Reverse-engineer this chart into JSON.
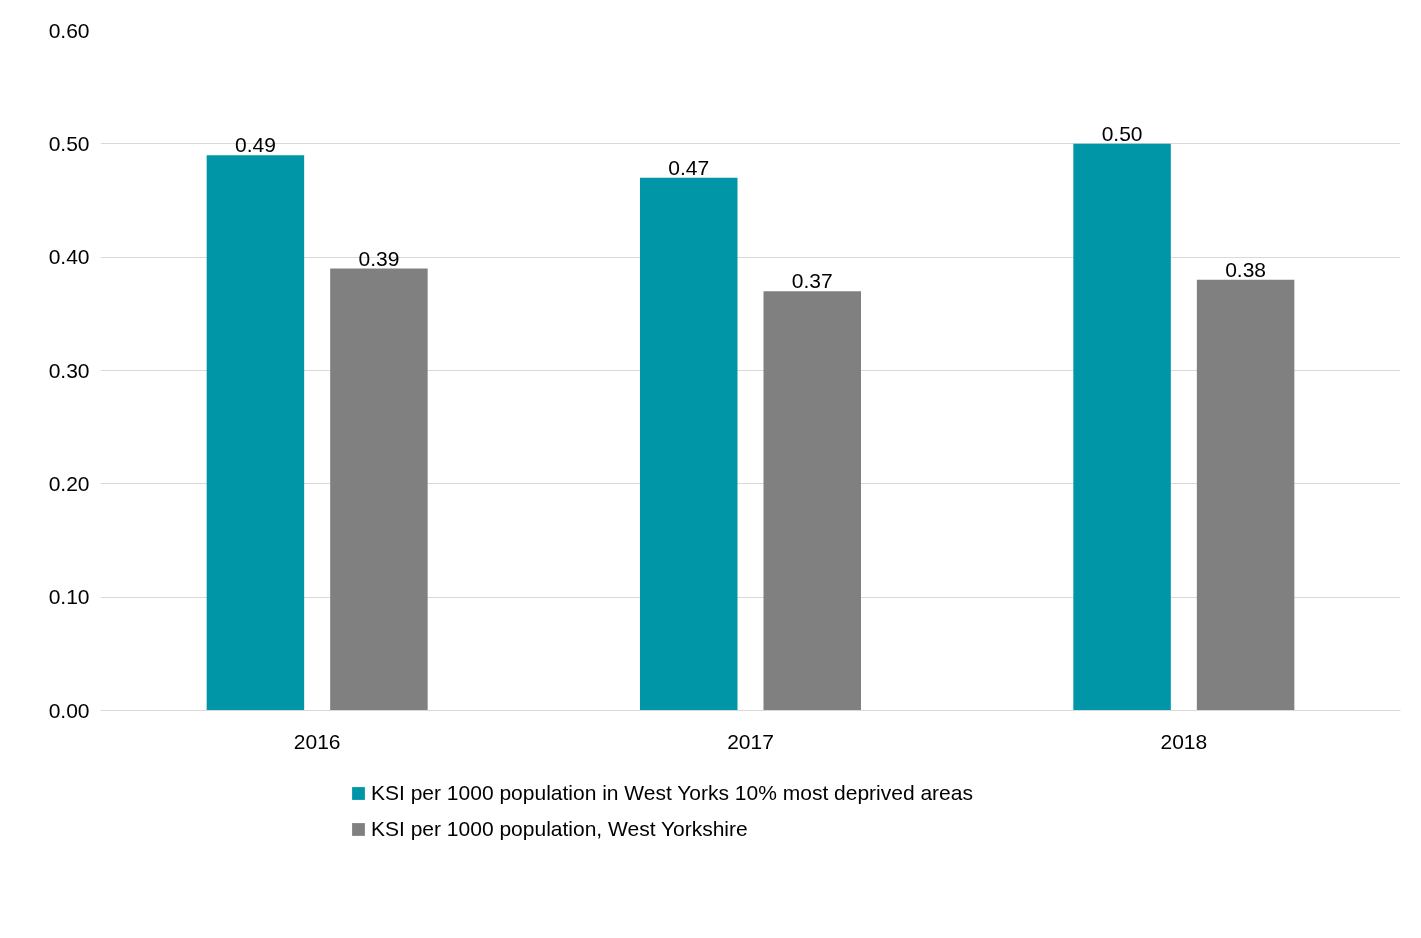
{
  "chart_data": {
    "type": "bar",
    "categories": [
      "2016",
      "2017",
      "2018"
    ],
    "series": [
      {
        "name": "KSI per 1000 population in West Yorks 10% most deprived areas",
        "color": "#0096a8",
        "values": [
          0.49,
          0.47,
          0.5
        ],
        "value_labels": [
          "0.49",
          "0.47",
          "0.50"
        ]
      },
      {
        "name": "KSI per 1000 population, West Yorkshire",
        "color": "#808080",
        "values": [
          0.39,
          0.37,
          0.38
        ],
        "value_labels": [
          "0.39",
          "0.37",
          "0.38"
        ]
      }
    ],
    "ylim": [
      0,
      0.6
    ],
    "yticks": [
      {
        "value": 0,
        "label": "0.00"
      },
      {
        "value": 0.1,
        "label": "0.10"
      },
      {
        "value": 0.2,
        "label": "0.20"
      },
      {
        "value": 0.3,
        "label": "0.30"
      },
      {
        "value": 0.4,
        "label": "0.40"
      },
      {
        "value": 0.5,
        "label": "0.50"
      },
      {
        "value": 0.6,
        "label": "0.60"
      }
    ],
    "grid": "y",
    "legend": "bottom"
  }
}
